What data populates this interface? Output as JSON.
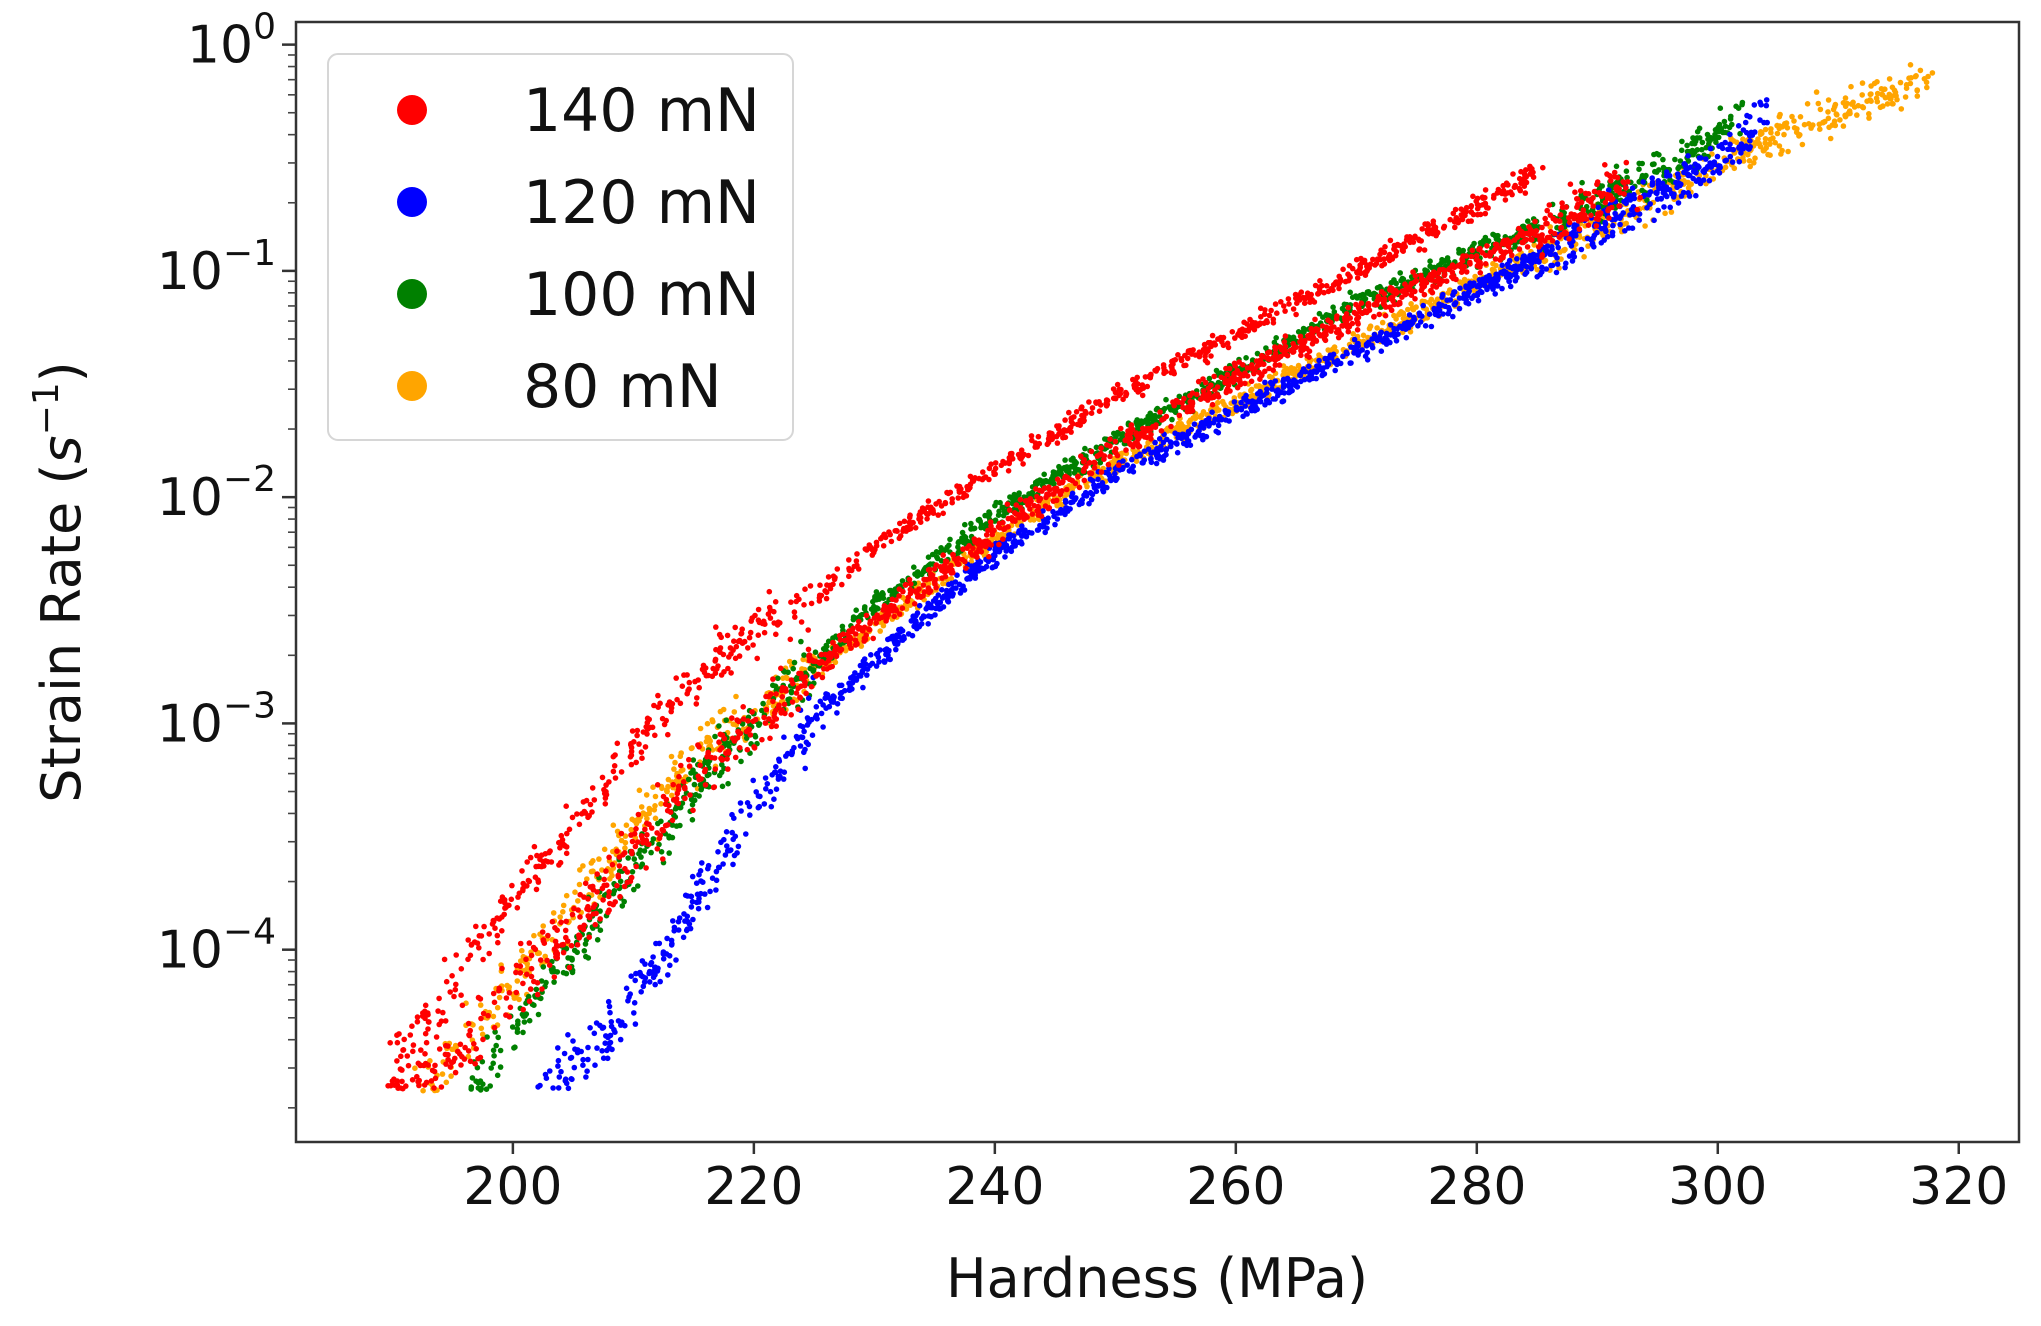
{
  "chart_data": {
    "type": "scatter",
    "title": "",
    "xlabel": "Hardness (MPa)",
    "ylabel_main": "Strain Rate (",
    "ylabel_var": "s",
    "ylabel_sup": "−1",
    "ylabel_close": ")",
    "xlim": [
      182,
      325
    ],
    "ylim_log10": [
      -4.85,
      0.1
    ],
    "yscale": "log",
    "x_ticks": [
      {
        "value": 200,
        "label": "200"
      },
      {
        "value": 220,
        "label": "220"
      },
      {
        "value": 240,
        "label": "240"
      },
      {
        "value": 260,
        "label": "260"
      },
      {
        "value": 280,
        "label": "280"
      },
      {
        "value": 300,
        "label": "300"
      },
      {
        "value": 320,
        "label": "320"
      }
    ],
    "y_ticks": [
      {
        "exp": 0,
        "base": "10",
        "sup": "0"
      },
      {
        "exp": -1,
        "base": "10",
        "sup": "−1"
      },
      {
        "exp": -2,
        "base": "10",
        "sup": "−2"
      },
      {
        "exp": -3,
        "base": "10",
        "sup": "−3"
      },
      {
        "exp": -4,
        "base": "10",
        "sup": "−4"
      }
    ],
    "grid": false,
    "legend_position": "top-left",
    "series": [
      {
        "name": "80 mN",
        "color": "#ffa500",
        "spread_log": 0.05,
        "floor_log10": -4.63,
        "curve": [
          [
            192,
            -4.63
          ],
          [
            195,
            -4.45
          ],
          [
            200,
            -4.15
          ],
          [
            205,
            -3.82
          ],
          [
            210,
            -3.48
          ],
          [
            215,
            -3.15
          ],
          [
            220,
            -2.95
          ],
          [
            225,
            -2.75
          ],
          [
            230,
            -2.58
          ],
          [
            240,
            -2.18
          ],
          [
            250,
            -1.86
          ],
          [
            260,
            -1.58
          ],
          [
            270,
            -1.32
          ],
          [
            280,
            -1.05
          ],
          [
            290,
            -0.8
          ],
          [
            300,
            -0.53
          ],
          [
            305,
            -0.4
          ],
          [
            310,
            -0.3
          ],
          [
            318,
            -0.15
          ]
        ]
      },
      {
        "name": "100 mN",
        "color": "#008000",
        "spread_log": 0.05,
        "floor_log10": -4.62,
        "curve": [
          [
            196,
            -4.62
          ],
          [
            198,
            -4.5
          ],
          [
            202,
            -4.2
          ],
          [
            207,
            -3.85
          ],
          [
            212,
            -3.5
          ],
          [
            218,
            -3.1
          ],
          [
            224,
            -2.78
          ],
          [
            230,
            -2.48
          ],
          [
            235,
            -2.28
          ],
          [
            240,
            -2.08
          ],
          [
            250,
            -1.75
          ],
          [
            260,
            -1.45
          ],
          [
            270,
            -1.15
          ],
          [
            280,
            -0.92
          ],
          [
            290,
            -0.7
          ],
          [
            297,
            -0.52
          ],
          [
            302,
            -0.3
          ]
        ]
      },
      {
        "name": "120 mN",
        "color": "#0000ff",
        "spread_log": 0.05,
        "floor_log10": -4.62,
        "curve": [
          [
            202,
            -4.62
          ],
          [
            206,
            -4.5
          ],
          [
            210,
            -4.2
          ],
          [
            215,
            -3.8
          ],
          [
            220,
            -3.35
          ],
          [
            225,
            -2.98
          ],
          [
            230,
            -2.72
          ],
          [
            235,
            -2.48
          ],
          [
            240,
            -2.25
          ],
          [
            250,
            -1.9
          ],
          [
            260,
            -1.62
          ],
          [
            270,
            -1.36
          ],
          [
            280,
            -1.08
          ],
          [
            290,
            -0.8
          ],
          [
            300,
            -0.52
          ],
          [
            304,
            -0.3
          ]
        ]
      },
      {
        "name": "140 mN",
        "color": "#ff0000",
        "spread_log": 0.06,
        "floor_log10": -4.62,
        "curve": [
          [
            190,
            -4.62
          ],
          [
            195,
            -4.45
          ],
          [
            200,
            -4.2
          ],
          [
            205,
            -3.9
          ],
          [
            210,
            -3.58
          ],
          [
            215,
            -3.25
          ],
          [
            220,
            -3.0
          ],
          [
            225,
            -2.75
          ],
          [
            230,
            -2.55
          ],
          [
            240,
            -2.15
          ],
          [
            250,
            -1.78
          ],
          [
            260,
            -1.47
          ],
          [
            270,
            -1.2
          ],
          [
            280,
            -0.95
          ],
          [
            290,
            -0.7
          ],
          [
            293,
            -0.6
          ]
        ],
        "upper_branch": [
          [
            190,
            -4.5
          ],
          [
            195,
            -4.15
          ],
          [
            200,
            -3.78
          ],
          [
            205,
            -3.45
          ],
          [
            210,
            -3.12
          ],
          [
            215,
            -2.82
          ],
          [
            220,
            -2.6
          ],
          [
            225,
            -2.45
          ],
          [
            230,
            -2.22
          ],
          [
            240,
            -1.88
          ],
          [
            250,
            -1.55
          ],
          [
            260,
            -1.28
          ],
          [
            270,
            -1.0
          ],
          [
            280,
            -0.72
          ],
          [
            285,
            -0.55
          ]
        ]
      }
    ]
  }
}
